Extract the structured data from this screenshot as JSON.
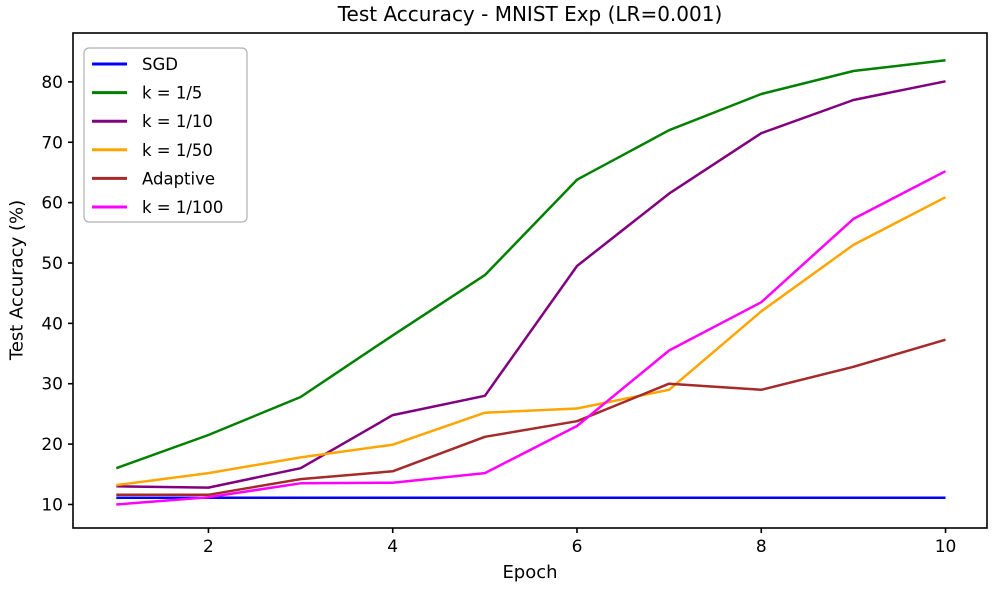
{
  "figure": {
    "title": "Test Accuracy - MNIST Exp (LR=0.001)",
    "xlabel": "Epoch",
    "ylabel": "Test Accuracy (%)"
  },
  "colors": {
    "axis": "#000000",
    "background": "#ffffff",
    "legend_border": "#b0b0b0",
    "legend_fill": "#ffffff"
  },
  "chart_data": {
    "type": "line",
    "title": "Test Accuracy - MNIST Exp (LR=0.001)",
    "xlabel": "Epoch",
    "ylabel": "Test Accuracy (%)",
    "x": [
      1,
      2,
      3,
      4,
      5,
      6,
      7,
      8,
      9,
      10
    ],
    "xlim": [
      0.53,
      10.45
    ],
    "ylim": [
      6.1,
      88.1
    ],
    "xticks": [
      2,
      4,
      6,
      8,
      10
    ],
    "yticks": [
      10,
      20,
      30,
      40,
      50,
      60,
      70,
      80
    ],
    "grid": false,
    "legend_position": "upper-left",
    "series": [
      {
        "name": "SGD",
        "color": "#0000ff",
        "values": [
          11.1,
          11.1,
          11.1,
          11.1,
          11.1,
          11.1,
          11.1,
          11.1,
          11.1,
          11.1
        ]
      },
      {
        "name": "k = 1/5",
        "color": "#008000",
        "values": [
          16.0,
          21.5,
          27.8,
          38.0,
          48.0,
          63.8,
          72.0,
          78.0,
          81.8,
          83.6
        ]
      },
      {
        "name": "k = 1/10",
        "color": "#800080",
        "values": [
          13.0,
          12.8,
          16.0,
          24.8,
          28.0,
          49.5,
          61.5,
          71.5,
          77.0,
          80.1
        ]
      },
      {
        "name": "k = 1/50",
        "color": "#ffa500",
        "values": [
          13.2,
          15.2,
          17.8,
          19.9,
          25.2,
          25.9,
          29.0,
          42.0,
          53.0,
          60.9
        ]
      },
      {
        "name": "Adaptive",
        "color": "#a52a2a",
        "values": [
          11.6,
          11.6,
          14.2,
          15.5,
          21.2,
          23.8,
          30.0,
          29.0,
          32.8,
          37.3
        ]
      },
      {
        "name": "k = 1/100",
        "color": "#ff00ff",
        "values": [
          10.0,
          11.2,
          13.5,
          13.6,
          15.2,
          23.0,
          35.5,
          43.5,
          57.3,
          65.2
        ]
      }
    ]
  }
}
